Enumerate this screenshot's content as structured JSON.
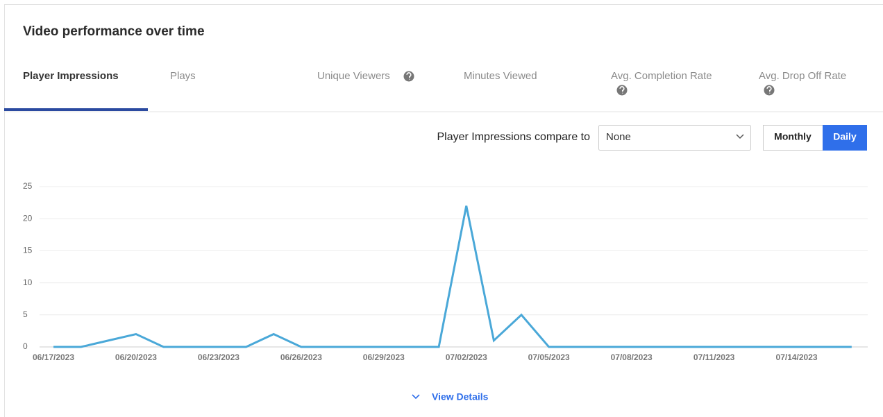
{
  "header": {
    "title": "Video performance over time"
  },
  "tabs": [
    "Player Impressions",
    "Plays",
    "Unique Viewers",
    "Minutes Viewed",
    "Avg. Completion Rate",
    "Avg. Drop Off Rate"
  ],
  "compare": {
    "label": "Player Impressions compare to",
    "selected": "None"
  },
  "period_buttons": [
    "Monthly",
    "Daily"
  ],
  "footer": {
    "link": "View Details"
  },
  "chart_data": {
    "type": "line",
    "x": [
      "06/17/2023",
      null,
      null,
      "06/20/2023",
      null,
      null,
      "06/23/2023",
      null,
      null,
      "06/26/2023",
      null,
      null,
      "06/29/2023",
      null,
      null,
      "07/02/2023",
      null,
      null,
      "07/05/2023",
      null,
      null,
      "07/08/2023",
      null,
      null,
      "07/11/2023",
      null,
      null,
      "07/14/2023",
      null,
      null
    ],
    "series": [
      {
        "name": "Player Impressions",
        "color": "#4aa8d8",
        "values": [
          0,
          0,
          1,
          2,
          0,
          0,
          0,
          0,
          2,
          0,
          0,
          0,
          0,
          0,
          0,
          22,
          1,
          5,
          0,
          0,
          0,
          0,
          0,
          0,
          0,
          0,
          0,
          0,
          0,
          0
        ]
      }
    ],
    "ylim": [
      0,
      25
    ],
    "yticks": [
      0,
      5,
      10,
      15,
      20,
      25
    ],
    "grid": true
  }
}
